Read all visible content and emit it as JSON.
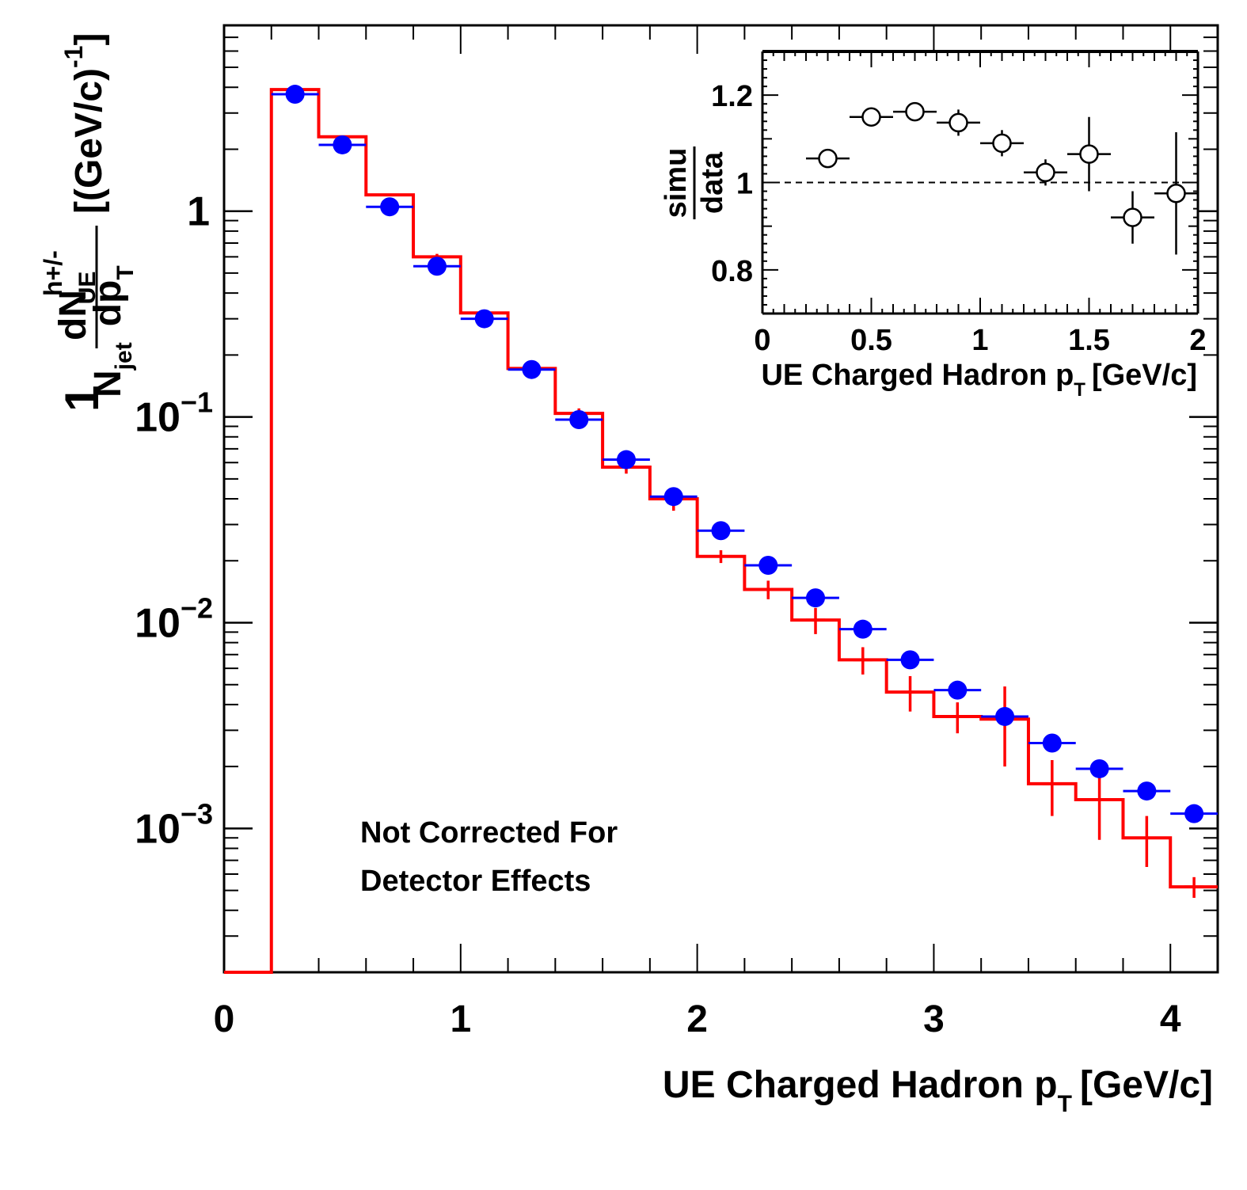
{
  "chart_data": [
    {
      "type": "line",
      "title": "",
      "xlabel_main": "UE Charged Hadron p",
      "xlabel_sub": "T",
      "xlabel_unit": "[GeV/c]",
      "ylabel": {
        "numerator_lead": "1",
        "numerator_main": "dN",
        "numerator_sup": "h+/-",
        "numerator_sub": "UE",
        "denominator_main": "N",
        "denominator_sub": "jet",
        "denominator_dp": "dp",
        "denominator_dp_sub": "T",
        "unit": "[(GeV/c)",
        "unit_sup": "-1",
        "unit_close": "]"
      },
      "xscale": "linear",
      "yscale": "log",
      "xlim": [
        0,
        4.2
      ],
      "ylim": [
        0.0002,
        8
      ],
      "x_ticks": [
        "0",
        "1",
        "2",
        "3",
        "4"
      ],
      "y_ticks": [
        {
          "value": 1,
          "label": "1",
          "base": "",
          "exp": ""
        },
        {
          "value": 0.1,
          "label": "",
          "base": "10",
          "exp": "−1"
        },
        {
          "value": 0.01,
          "label": "",
          "base": "10",
          "exp": "−2"
        },
        {
          "value": 0.001,
          "label": "",
          "base": "10",
          "exp": "−3"
        }
      ],
      "annotation": [
        "Not Corrected For",
        "Detector Effects"
      ],
      "series": [
        {
          "kind": "markers",
          "color": "#0000ff",
          "points": [
            {
              "x": 0.3,
              "y": 3.7
            },
            {
              "x": 0.5,
              "y": 2.1
            },
            {
              "x": 0.7,
              "y": 1.05
            },
            {
              "x": 0.9,
              "y": 0.54
            },
            {
              "x": 1.1,
              "y": 0.3
            },
            {
              "x": 1.3,
              "y": 0.17
            },
            {
              "x": 1.5,
              "y": 0.097
            },
            {
              "x": 1.7,
              "y": 0.062
            },
            {
              "x": 1.9,
              "y": 0.041
            },
            {
              "x": 2.1,
              "y": 0.028
            },
            {
              "x": 2.3,
              "y": 0.019
            },
            {
              "x": 2.5,
              "y": 0.0132
            },
            {
              "x": 2.7,
              "y": 0.0093
            },
            {
              "x": 2.9,
              "y": 0.0066
            },
            {
              "x": 3.1,
              "y": 0.0047
            },
            {
              "x": 3.3,
              "y": 0.0035
            },
            {
              "x": 3.5,
              "y": 0.0026
            },
            {
              "x": 3.7,
              "y": 0.00195
            },
            {
              "x": 3.9,
              "y": 0.00152
            },
            {
              "x": 4.1,
              "y": 0.00118
            }
          ]
        },
        {
          "kind": "step",
          "color": "#ff0000",
          "bins": [
            {
              "x0": 0.0,
              "x1": 0.2,
              "y": 0.0002,
              "err_lo": 0,
              "err_hi": 0
            },
            {
              "x0": 0.2,
              "x1": 0.4,
              "y": 3.9,
              "err_lo": 0,
              "err_hi": 0
            },
            {
              "x0": 0.4,
              "x1": 0.6,
              "y": 2.3,
              "err_lo": 0,
              "err_hi": 0
            },
            {
              "x0": 0.6,
              "x1": 0.8,
              "y": 1.2,
              "err_lo": 0,
              "err_hi": 0
            },
            {
              "x0": 0.8,
              "x1": 1.0,
              "y": 0.6,
              "err_lo": 0.02,
              "err_hi": 0.02
            },
            {
              "x0": 1.0,
              "x1": 1.2,
              "y": 0.32,
              "err_lo": 0.01,
              "err_hi": 0.01
            },
            {
              "x0": 1.2,
              "x1": 1.4,
              "y": 0.172,
              "err_lo": 0.006,
              "err_hi": 0.006
            },
            {
              "x0": 1.4,
              "x1": 1.6,
              "y": 0.104,
              "err_lo": 0.006,
              "err_hi": 0.006
            },
            {
              "x0": 1.6,
              "x1": 1.8,
              "y": 0.057,
              "err_lo": 0.004,
              "err_hi": 0.004
            },
            {
              "x0": 1.8,
              "x1": 2.0,
              "y": 0.04,
              "err_lo": 0.005,
              "err_hi": 0.005
            },
            {
              "x0": 2.0,
              "x1": 2.2,
              "y": 0.021,
              "err_lo": 0.0015,
              "err_hi": 0.0015
            },
            {
              "x0": 2.2,
              "x1": 2.4,
              "y": 0.0145,
              "err_lo": 0.0015,
              "err_hi": 0.0015
            },
            {
              "x0": 2.4,
              "x1": 2.6,
              "y": 0.0103,
              "err_lo": 0.0015,
              "err_hi": 0.0015
            },
            {
              "x0": 2.6,
              "x1": 2.8,
              "y": 0.0066,
              "err_lo": 0.001,
              "err_hi": 0.001
            },
            {
              "x0": 2.8,
              "x1": 3.0,
              "y": 0.0046,
              "err_lo": 0.0009,
              "err_hi": 0.0009
            },
            {
              "x0": 3.0,
              "x1": 3.2,
              "y": 0.0035,
              "err_lo": 0.0006,
              "err_hi": 0.0006
            },
            {
              "x0": 3.2,
              "x1": 3.4,
              "y": 0.0034,
              "err_lo": 0.0014,
              "err_hi": 0.0015
            },
            {
              "x0": 3.4,
              "x1": 3.6,
              "y": 0.00165,
              "err_lo": 0.0005,
              "err_hi": 0.0005
            },
            {
              "x0": 3.6,
              "x1": 3.8,
              "y": 0.00138,
              "err_lo": 0.0005,
              "err_hi": 0.0004
            },
            {
              "x0": 3.8,
              "x1": 4.0,
              "y": 0.0009,
              "err_lo": 0.00025,
              "err_hi": 0.00025
            },
            {
              "x0": 4.0,
              "x1": 4.2,
              "y": 0.00052,
              "err_lo": 6e-05,
              "err_hi": 6e-05
            }
          ]
        }
      ]
    },
    {
      "type": "scatter",
      "title": "",
      "xlabel_main": "UE Charged Hadron p",
      "xlabel_sub": "T",
      "xlabel_unit": "[GeV/c]",
      "ylabel_num": "simu",
      "ylabel_den": "data",
      "xlim": [
        0,
        2
      ],
      "ylim": [
        0.7,
        1.3
      ],
      "x_ticks": [
        {
          "value": 0,
          "label": "0"
        },
        {
          "value": 0.5,
          "label": "0.5"
        },
        {
          "value": 1,
          "label": "1"
        },
        {
          "value": 1.5,
          "label": "1.5"
        },
        {
          "value": 2,
          "label": "2"
        }
      ],
      "y_ticks": [
        {
          "value": 0.8,
          "label": "0.8"
        },
        {
          "value": 1,
          "label": "1"
        },
        {
          "value": 1.2,
          "label": "1.2"
        }
      ],
      "reference_line": 1,
      "marker": "open-circle",
      "points": [
        {
          "x": 0.3,
          "y": 1.055,
          "err": 0.004
        },
        {
          "x": 0.5,
          "y": 1.15,
          "err": 0.004
        },
        {
          "x": 0.7,
          "y": 1.162,
          "err": 0.012
        },
        {
          "x": 0.9,
          "y": 1.137,
          "err": 0.03
        },
        {
          "x": 1.1,
          "y": 1.09,
          "err": 0.03
        },
        {
          "x": 1.3,
          "y": 1.023,
          "err": 0.03
        },
        {
          "x": 1.5,
          "y": 1.065,
          "err": 0.085
        },
        {
          "x": 1.7,
          "y": 0.92,
          "err": 0.06
        },
        {
          "x": 1.9,
          "y": 0.975,
          "err": 0.14
        }
      ]
    }
  ]
}
